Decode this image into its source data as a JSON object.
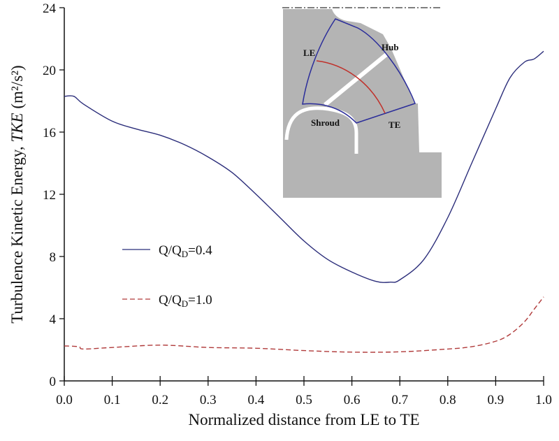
{
  "chart_data": {
    "type": "line",
    "xlabel": "Normalized distance from LE to TE",
    "ylabel_prefix": "Turbulence Kinetic Energy, ",
    "ylabel_italic": "TKE",
    "ylabel_unit": " (m²/s²)",
    "xlim": [
      0,
      1.0
    ],
    "ylim": [
      0,
      24
    ],
    "xticks": [
      "0.0",
      "0.1",
      "0.2",
      "0.3",
      "0.4",
      "0.5",
      "0.6",
      "0.7",
      "0.8",
      "0.9",
      "1.0"
    ],
    "yticks": [
      "0",
      "4",
      "8",
      "12",
      "16",
      "20",
      "24"
    ],
    "grid": false,
    "legend_placement": "center-left",
    "series": [
      {
        "name": "Q/QD=0.4",
        "legend_main": "Q/Q",
        "legend_sub": "D",
        "legend_tail": "=0.4",
        "color": "#2b2d7a",
        "style": "solid",
        "x": [
          0,
          0.02,
          0.04,
          0.1,
          0.15,
          0.2,
          0.25,
          0.3,
          0.35,
          0.4,
          0.45,
          0.5,
          0.55,
          0.6,
          0.65,
          0.68,
          0.7,
          0.75,
          0.8,
          0.85,
          0.9,
          0.93,
          0.96,
          0.98,
          1.0
        ],
        "y": [
          18.3,
          18.3,
          17.8,
          16.7,
          16.2,
          15.8,
          15.2,
          14.4,
          13.4,
          12.0,
          10.5,
          9.0,
          7.8,
          7.0,
          6.4,
          6.35,
          6.5,
          7.8,
          10.5,
          14.0,
          17.5,
          19.5,
          20.5,
          20.7,
          21.2
        ]
      },
      {
        "name": "Q/QD=1.0",
        "legend_main": "Q/Q",
        "legend_sub": "D",
        "legend_tail": "=1.0",
        "color": "#b03a3a",
        "style": "dashed",
        "x": [
          0,
          0.03,
          0.04,
          0.1,
          0.2,
          0.3,
          0.4,
          0.5,
          0.6,
          0.7,
          0.8,
          0.85,
          0.9,
          0.93,
          0.96,
          0.98,
          1.0
        ],
        "y": [
          2.25,
          2.2,
          2.05,
          2.15,
          2.3,
          2.15,
          2.1,
          1.95,
          1.85,
          1.87,
          2.05,
          2.2,
          2.55,
          3.0,
          3.8,
          4.6,
          5.4
        ]
      }
    ],
    "inset": {
      "labels": {
        "le": "LE",
        "hub": "Hub",
        "shroud": "Shroud",
        "te": "TE"
      },
      "colors": {
        "body": "#b4b4b4",
        "outline": "#2b2d9a",
        "line": "#c0302a"
      }
    }
  }
}
